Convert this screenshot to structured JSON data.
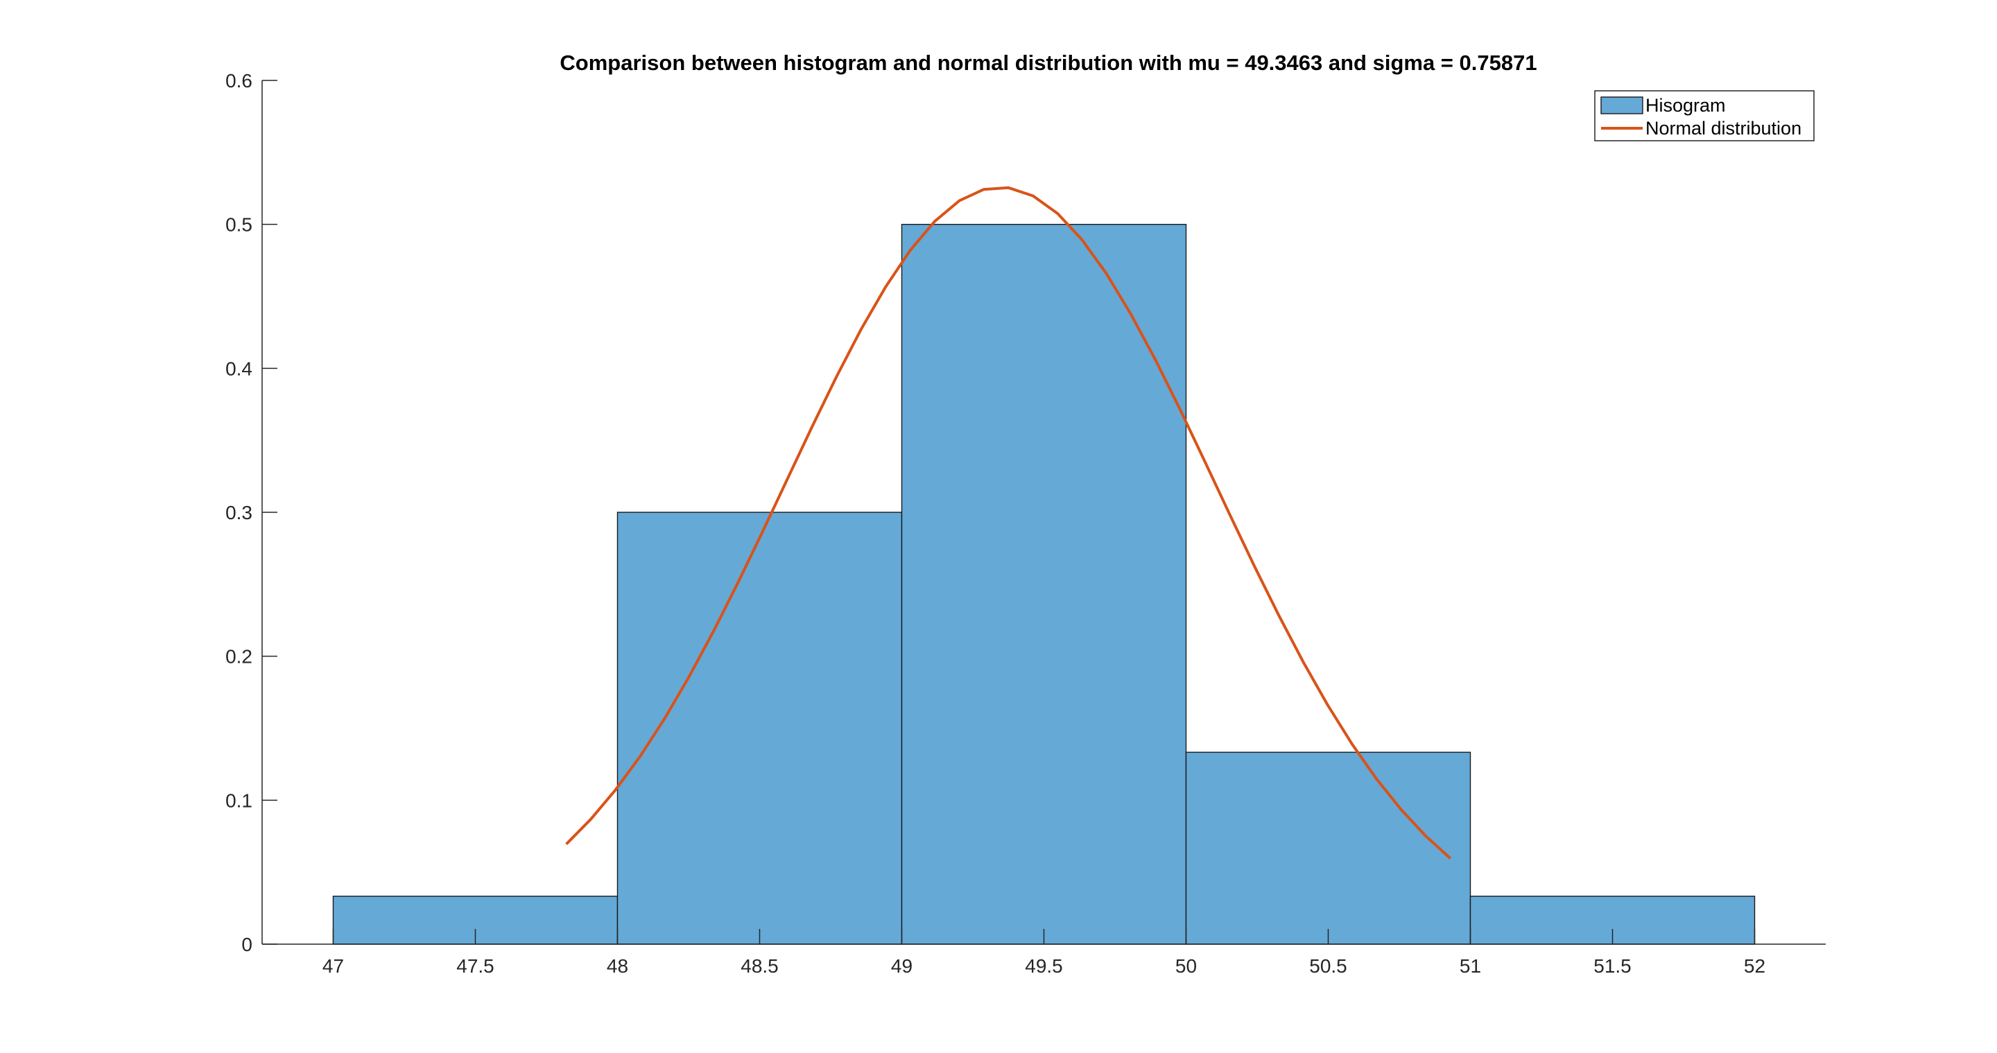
{
  "chart_data": {
    "type": "bar",
    "title": "Comparison between histogram and normal distribution with mu = 49.3463 and sigma = 0.75871",
    "xlabel": "",
    "ylabel": "",
    "xlim": [
      46.75,
      52.25
    ],
    "ylim": [
      0,
      0.6
    ],
    "xticks": [
      "47",
      "47.5",
      "48",
      "48.5",
      "49",
      "49.5",
      "50",
      "50.5",
      "51",
      "51.5",
      "52"
    ],
    "xtick_values": [
      47,
      47.5,
      48,
      48.5,
      49,
      49.5,
      50,
      50.5,
      51,
      51.5,
      52
    ],
    "yticks": [
      "0",
      "0.1",
      "0.2",
      "0.3",
      "0.4",
      "0.5",
      "0.6"
    ],
    "ytick_values": [
      0,
      0.1,
      0.2,
      0.3,
      0.4,
      0.5,
      0.6
    ],
    "grid": false,
    "legend_position": "top-right",
    "series": [
      {
        "name": "Hisogram",
        "kind": "histogram",
        "color": "#65a9d7",
        "edge_color": "#1a1a1a",
        "bin_edges": [
          47,
          48,
          49,
          50,
          51,
          52
        ],
        "values": [
          0.0333,
          0.3,
          0.5,
          0.1333,
          0.0333
        ]
      },
      {
        "name": "Normal distribution",
        "kind": "line",
        "color": "#d95319",
        "mu": 49.3463,
        "sigma": 0.75871,
        "x_range": [
          47.82,
          50.93
        ]
      }
    ]
  }
}
